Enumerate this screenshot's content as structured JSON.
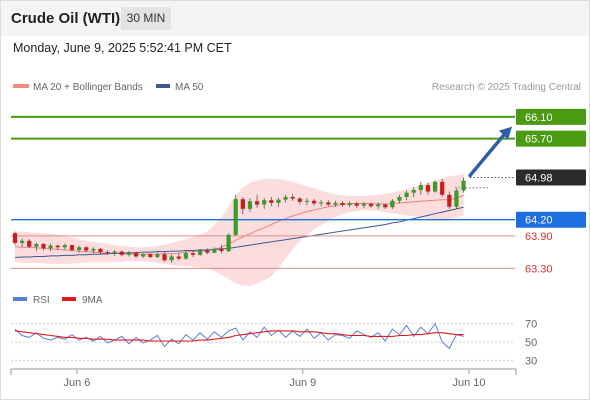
{
  "header": {
    "title": "Crude Oil (WTI)",
    "timeframe": "30 MIN",
    "timestamp": "Monday, June 9, 2025 5:52:41 PM CET"
  },
  "legend": {
    "items": [
      {
        "label": "MA 20 + Bollinger Bands",
        "color": "#f28b82"
      },
      {
        "label": "MA 50",
        "color": "#3c5a8e"
      }
    ],
    "credit": "Research © 2025 Trading Central"
  },
  "chart_data": [
    {
      "type": "candlestick",
      "ylim": [
        62.9,
        66.45
      ],
      "x_ticks": [
        "Jun 6",
        "Jun 9",
        "Jun 10"
      ],
      "current_price": {
        "value": 64.98,
        "label": "64.98",
        "color": "#2b2b2b"
      },
      "resistance_levels": [
        {
          "value": 66.1,
          "label": "66.10",
          "color": "#4a9a12"
        },
        {
          "value": 65.7,
          "label": "65.70",
          "color": "#4a9a12"
        }
      ],
      "pivot_level": {
        "value": 64.2,
        "label": "64.20",
        "color": "#1c6fe0"
      },
      "support_levels": [
        {
          "value": 63.9,
          "label": "63.90",
          "color": "#d33030"
        },
        {
          "value": 63.3,
          "label": "63.30",
          "color": "#d33030"
        }
      ],
      "forecast_arrow": {
        "from": 64.98,
        "to": 65.92,
        "color": "#2d5ea8"
      },
      "candles": [
        [
          63.95,
          63.98,
          63.73,
          63.77
        ],
        [
          63.77,
          63.85,
          63.7,
          63.81
        ],
        [
          63.81,
          63.84,
          63.67,
          63.7
        ],
        [
          63.7,
          63.78,
          63.62,
          63.75
        ],
        [
          63.75,
          63.77,
          63.63,
          63.67
        ],
        [
          63.67,
          63.76,
          63.62,
          63.72
        ],
        [
          63.72,
          63.74,
          63.64,
          63.69
        ],
        [
          63.69,
          63.76,
          63.65,
          63.73
        ],
        [
          63.73,
          63.74,
          63.61,
          63.64
        ],
        [
          63.64,
          63.72,
          63.59,
          63.69
        ],
        [
          63.69,
          63.71,
          63.6,
          63.63
        ],
        [
          63.63,
          63.69,
          63.58,
          63.66
        ],
        [
          63.66,
          63.68,
          63.56,
          63.6
        ],
        [
          63.6,
          63.64,
          63.55,
          63.58
        ],
        [
          63.58,
          63.64,
          63.53,
          63.61
        ],
        [
          63.61,
          63.63,
          63.52,
          63.55
        ],
        [
          63.55,
          63.62,
          63.52,
          63.59
        ],
        [
          63.59,
          63.61,
          63.5,
          63.52
        ],
        [
          63.52,
          63.58,
          63.49,
          63.56
        ],
        [
          63.56,
          63.58,
          63.49,
          63.51
        ],
        [
          63.51,
          63.59,
          63.49,
          63.56
        ],
        [
          63.56,
          63.6,
          63.42,
          63.45
        ],
        [
          63.45,
          63.56,
          63.4,
          63.52
        ],
        [
          63.52,
          63.57,
          63.45,
          63.48
        ],
        [
          63.48,
          63.62,
          63.46,
          63.58
        ],
        [
          63.58,
          63.62,
          63.51,
          63.55
        ],
        [
          63.55,
          63.66,
          63.53,
          63.63
        ],
        [
          63.63,
          63.67,
          63.56,
          63.59
        ],
        [
          63.59,
          63.69,
          63.58,
          63.66
        ],
        [
          63.66,
          63.74,
          63.58,
          63.62
        ],
        [
          63.62,
          63.95,
          63.6,
          63.92
        ],
        [
          63.92,
          64.66,
          63.9,
          64.58
        ],
        [
          64.58,
          64.62,
          64.3,
          64.4
        ],
        [
          64.4,
          64.6,
          64.35,
          64.54
        ],
        [
          64.54,
          64.66,
          64.42,
          64.48
        ],
        [
          64.48,
          64.6,
          64.4,
          64.56
        ],
        [
          64.56,
          64.62,
          64.45,
          64.51
        ],
        [
          64.51,
          64.6,
          64.44,
          64.57
        ],
        [
          64.57,
          64.66,
          64.52,
          64.62
        ],
        [
          64.62,
          64.68,
          64.55,
          64.59
        ],
        [
          64.59,
          64.62,
          64.48,
          64.53
        ],
        [
          64.53,
          64.6,
          64.46,
          64.55
        ],
        [
          64.55,
          64.58,
          64.46,
          64.5
        ],
        [
          64.5,
          64.56,
          64.45,
          64.52
        ],
        [
          64.52,
          64.56,
          64.45,
          64.48
        ],
        [
          64.48,
          64.55,
          64.44,
          64.51
        ],
        [
          64.51,
          64.54,
          64.44,
          64.47
        ],
        [
          64.47,
          64.54,
          64.43,
          64.5
        ],
        [
          64.5,
          64.53,
          64.42,
          64.46
        ],
        [
          64.46,
          64.53,
          64.41,
          64.49
        ],
        [
          64.49,
          64.52,
          64.42,
          64.45
        ],
        [
          64.45,
          64.52,
          64.4,
          64.48
        ],
        [
          64.48,
          64.5,
          64.4,
          64.43
        ],
        [
          64.43,
          64.58,
          64.4,
          64.55
        ],
        [
          64.55,
          64.66,
          64.5,
          64.62
        ],
        [
          64.62,
          64.74,
          64.56,
          64.7
        ],
        [
          64.7,
          64.8,
          64.62,
          64.75
        ],
        [
          64.75,
          64.9,
          64.66,
          64.84
        ],
        [
          64.84,
          64.88,
          64.66,
          64.72
        ],
        [
          64.72,
          64.93,
          64.7,
          64.9
        ],
        [
          64.9,
          64.96,
          64.62,
          64.66
        ],
        [
          64.66,
          64.72,
          64.4,
          64.44
        ],
        [
          64.44,
          64.78,
          64.4,
          64.74
        ],
        [
          64.74,
          64.98,
          64.7,
          64.92
        ]
      ],
      "ma20": [
        63.7,
        63.69,
        63.69,
        63.68,
        63.67,
        63.66,
        63.65,
        63.64,
        63.63,
        63.62,
        63.61,
        63.6,
        63.59,
        63.58,
        63.58,
        63.57,
        63.57,
        63.56,
        63.56,
        63.56,
        63.56,
        63.57,
        63.57,
        63.58,
        63.6,
        63.61,
        63.62,
        63.63,
        63.65,
        63.69,
        63.75,
        63.82,
        63.88,
        63.94,
        64.0,
        64.05,
        64.11,
        64.17,
        64.22,
        64.27,
        64.31,
        64.35,
        64.38,
        64.41,
        64.44,
        64.46,
        64.48,
        64.5,
        64.5,
        64.5,
        64.5,
        64.49,
        64.49,
        64.5,
        64.51,
        64.52,
        64.53,
        64.54,
        64.55,
        64.56,
        64.57,
        64.57,
        64.6,
        64.65
      ],
      "bb_upper": [
        63.98,
        63.98,
        63.97,
        63.96,
        63.95,
        63.94,
        63.92,
        63.9,
        63.87,
        63.84,
        63.81,
        63.79,
        63.77,
        63.75,
        63.73,
        63.71,
        63.7,
        63.69,
        63.69,
        63.7,
        63.72,
        63.74,
        63.77,
        63.8,
        63.84,
        63.88,
        63.92,
        63.98,
        64.1,
        64.25,
        64.45,
        64.65,
        64.8,
        64.88,
        64.93,
        64.95,
        64.96,
        64.95,
        64.93,
        64.9,
        64.86,
        64.82,
        64.78,
        64.74,
        64.7,
        64.67,
        64.65,
        64.64,
        64.64,
        64.64,
        64.65,
        64.66,
        64.68,
        64.7,
        64.73,
        64.76,
        64.8,
        64.84,
        64.88,
        64.92,
        64.96,
        65.0,
        65.02,
        65.05
      ],
      "bb_lower": [
        63.42,
        63.4,
        63.4,
        63.4,
        63.39,
        63.38,
        63.38,
        63.38,
        63.39,
        63.4,
        63.41,
        63.41,
        63.41,
        63.41,
        63.42,
        63.42,
        63.43,
        63.43,
        63.43,
        63.42,
        63.4,
        63.38,
        63.36,
        63.35,
        63.34,
        63.33,
        63.32,
        63.3,
        63.25,
        63.18,
        63.1,
        63.02,
        62.98,
        62.98,
        63.02,
        63.08,
        63.15,
        63.3,
        63.48,
        63.65,
        63.8,
        63.92,
        64.02,
        64.1,
        64.18,
        64.25,
        64.3,
        64.34,
        64.36,
        64.37,
        64.37,
        64.36,
        64.34,
        64.32,
        64.3,
        64.28,
        64.26,
        64.24,
        64.22,
        64.2,
        64.2,
        64.22,
        64.24,
        64.28
      ],
      "ma50": [
        63.5,
        63.51,
        63.51,
        63.52,
        63.52,
        63.53,
        63.53,
        63.54,
        63.54,
        63.55,
        63.55,
        63.56,
        63.56,
        63.57,
        63.58,
        63.58,
        63.59,
        63.59,
        63.6,
        63.6,
        63.61,
        63.61,
        63.62,
        63.62,
        63.63,
        63.63,
        63.64,
        63.64,
        63.65,
        63.66,
        63.67,
        63.69,
        63.71,
        63.73,
        63.75,
        63.77,
        63.79,
        63.81,
        63.83,
        63.85,
        63.87,
        63.89,
        63.91,
        63.93,
        63.95,
        63.97,
        63.99,
        64.01,
        64.03,
        64.05,
        64.07,
        64.09,
        64.11,
        64.14,
        64.16,
        64.19,
        64.22,
        64.25,
        64.28,
        64.31,
        64.34,
        64.37,
        64.4,
        64.43
      ]
    },
    {
      "type": "line",
      "title": "RSI",
      "ylim": [
        25,
        76
      ],
      "y_ticks": [
        70,
        50,
        30
      ],
      "legend": [
        {
          "name": "RSI",
          "color": "#5b7fd6"
        },
        {
          "name": "9MA",
          "color": "#e01b1b"
        }
      ],
      "series": [
        {
          "name": "RSI",
          "color": "#5b7fd6",
          "values": [
            64,
            57,
            55,
            60,
            54,
            52,
            55,
            53,
            58,
            52,
            55,
            51,
            56,
            49,
            52,
            56,
            48,
            55,
            49,
            52,
            57,
            45,
            53,
            48,
            58,
            52,
            60,
            53,
            61,
            55,
            62,
            65,
            52,
            61,
            55,
            66,
            57,
            63,
            55,
            62,
            56,
            64,
            54,
            60,
            52,
            58,
            57,
            54,
            62,
            58,
            55,
            60,
            51,
            64,
            58,
            68,
            56,
            66,
            59,
            70,
            50,
            43,
            58,
            56
          ]
        },
        {
          "name": "9MA",
          "color": "#e01b1b",
          "values": [
            62,
            61,
            60,
            59,
            58,
            57,
            56,
            55,
            55,
            54,
            54,
            53,
            53,
            53,
            52,
            52,
            52,
            52,
            52,
            51,
            51,
            51,
            51,
            51,
            51,
            51,
            52,
            52,
            53,
            54,
            55,
            57,
            58,
            59,
            60,
            61,
            62,
            62,
            62,
            62,
            61,
            61,
            61,
            60,
            59,
            59,
            58,
            57,
            57,
            57,
            56,
            56,
            56,
            56,
            57,
            57,
            58,
            58,
            59,
            60,
            60,
            59,
            58,
            58
          ]
        }
      ]
    }
  ]
}
